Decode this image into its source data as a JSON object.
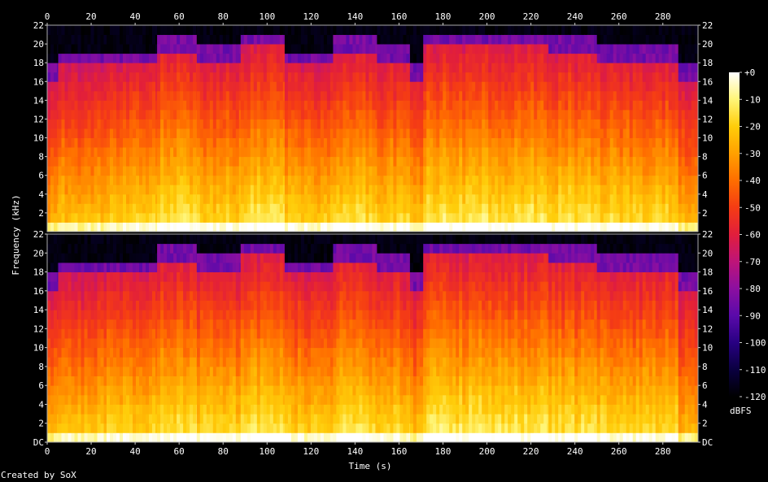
{
  "chart_data": {
    "type": "heatmap",
    "tool_credit": "Created by SoX",
    "xlabel": "Time (s)",
    "ylabel": "Frequency (kHz)",
    "x_ticks": [
      0,
      20,
      40,
      60,
      80,
      100,
      120,
      140,
      160,
      180,
      200,
      220,
      240,
      260,
      280
    ],
    "xlim": [
      0,
      296
    ],
    "channels": [
      {
        "ylim_khz": [
          0,
          22
        ],
        "y_ticks": [
          "2",
          "4",
          "6",
          "8",
          "10",
          "12",
          "14",
          "16",
          "18",
          "20",
          "22"
        ]
      },
      {
        "ylim_khz": [
          0,
          22
        ],
        "y_ticks": [
          "DC",
          "2",
          "4",
          "6",
          "8",
          "10",
          "12",
          "14",
          "16",
          "18",
          "20",
          "22"
        ]
      }
    ],
    "colorbar": {
      "unit": "dBFS",
      "ticks": [
        "+0",
        "-10",
        "-20",
        "-30",
        "-40",
        "-50",
        "-60",
        "-70",
        "-80",
        "-90",
        "-100",
        "-110",
        "-120"
      ],
      "range_db": [
        -120,
        0
      ],
      "colors": [
        "#000000",
        "#0a0040",
        "#3a0090",
        "#7a10b0",
        "#b0108a",
        "#e0203a",
        "#ff5a00",
        "#ff9a00",
        "#ffd000",
        "#ffff80",
        "#ffffff"
      ]
    },
    "segments": [
      {
        "t0": 0,
        "t1": 5,
        "cut_khz": 16,
        "energy": -62
      },
      {
        "t0": 5,
        "t1": 27,
        "cut_khz": 17.5,
        "energy": -58
      },
      {
        "t0": 27,
        "t1": 50,
        "cut_khz": 17.5,
        "energy": -55
      },
      {
        "t0": 50,
        "t1": 68,
        "cut_khz": 19,
        "energy": -50
      },
      {
        "t0": 68,
        "t1": 88,
        "cut_khz": 18,
        "energy": -54
      },
      {
        "t0": 88,
        "t1": 108,
        "cut_khz": 19.5,
        "energy": -50
      },
      {
        "t0": 108,
        "t1": 130,
        "cut_khz": 17.5,
        "energy": -55
      },
      {
        "t0": 130,
        "t1": 150,
        "cut_khz": 19,
        "energy": -51
      },
      {
        "t0": 150,
        "t1": 165,
        "cut_khz": 18,
        "energy": -54
      },
      {
        "t0": 165,
        "t1": 171,
        "cut_khz": 16,
        "energy": -60
      },
      {
        "t0": 171,
        "t1": 228,
        "cut_khz": 19.5,
        "energy": -49
      },
      {
        "t0": 228,
        "t1": 250,
        "cut_khz": 19,
        "energy": -51
      },
      {
        "t0": 250,
        "t1": 287,
        "cut_khz": 18,
        "energy": -53
      },
      {
        "t0": 287,
        "t1": 296,
        "cut_khz": 16,
        "energy": -62
      }
    ]
  }
}
